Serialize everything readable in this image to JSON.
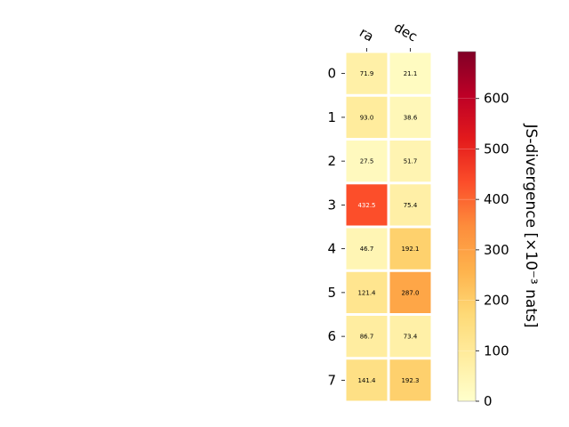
{
  "chart_data": {
    "type": "heatmap",
    "columns": [
      "ra",
      "dec"
    ],
    "rows": [
      "0",
      "1",
      "2",
      "3",
      "4",
      "5",
      "6",
      "7"
    ],
    "values": [
      [
        71.9,
        21.1
      ],
      [
        93.0,
        38.6
      ],
      [
        27.5,
        51.7
      ],
      [
        432.5,
        75.4
      ],
      [
        46.7,
        192.1
      ],
      [
        121.4,
        287.0
      ],
      [
        86.7,
        73.4
      ],
      [
        141.4,
        192.3
      ]
    ],
    "value_labels": [
      [
        "71.9",
        "21.1"
      ],
      [
        "93.0",
        "38.6"
      ],
      [
        "27.5",
        "51.7"
      ],
      [
        "432.5",
        "75.4"
      ],
      [
        "46.7",
        "192.1"
      ],
      [
        "121.4",
        "287.0"
      ],
      [
        "86.7",
        "73.4"
      ],
      [
        "141.4",
        "192.3"
      ]
    ],
    "colorbar": {
      "label": "JS-divergence [×10⁻³ nats]",
      "range": [
        0,
        693
      ],
      "ticks": [
        0,
        100,
        200,
        300,
        400,
        500,
        600
      ],
      "colormap": "YlOrRd"
    },
    "grid": false
  }
}
